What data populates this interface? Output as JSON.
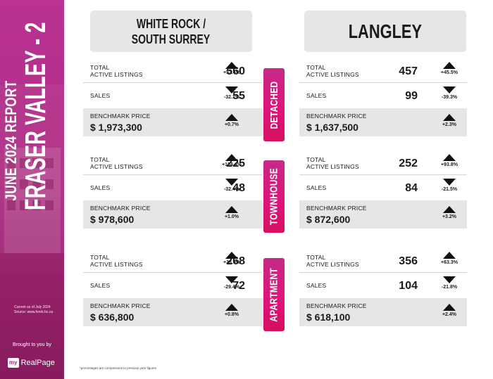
{
  "sidebar": {
    "title_line1": "JUNE 2024 REPORT",
    "title_line2": "FRASER VALLEY - 2",
    "current_line1": "Current as of July 2024",
    "current_line2": "Source: www.fvreb.bc.ca",
    "brought_by": "Brought to you by",
    "brand_my": "my",
    "brand_name": "RealPage"
  },
  "headers": {
    "left_line1": "WHITE ROCK /",
    "left_line2": "SOUTH SURREY",
    "right": "LANGLEY"
  },
  "categories": [
    "DETACHED",
    "TOWNHOUSE",
    "APARTMENT"
  ],
  "labels": {
    "listings_line1": "TOTAL",
    "listings_line2": "ACTIVE LISTINGS",
    "sales": "SALES",
    "benchmark": "BENCHMARK PRICE"
  },
  "white_rock": {
    "detached": {
      "listings": "560",
      "listings_change": "+53.4%",
      "listings_dir": "up",
      "sales": "55",
      "sales_change": "-32.1%",
      "sales_dir": "down",
      "benchmark": "$ 1,973,300",
      "benchmark_change": "+0.7%",
      "benchmark_dir": "up"
    },
    "townhouse": {
      "listings": "225",
      "listings_change": "+134.4%",
      "listings_dir": "up",
      "sales": "48",
      "sales_change": "-32.4%",
      "sales_dir": "down",
      "benchmark": "$ 978,600",
      "benchmark_change": "+1.0%",
      "benchmark_dir": "up"
    },
    "apartment": {
      "listings": "268",
      "listings_change": "+38.9%",
      "listings_dir": "up",
      "sales": "72",
      "sales_change": "-29.4%",
      "sales_dir": "down",
      "benchmark": "$  636,800",
      "benchmark_change": "+0.8%",
      "benchmark_dir": "up"
    }
  },
  "langley": {
    "detached": {
      "listings": "457",
      "listings_change": "+45.5%",
      "listings_dir": "up",
      "sales": "99",
      "sales_change": "-39.3%",
      "sales_dir": "down",
      "benchmark": "$  1,637,500",
      "benchmark_change": "+2.3%",
      "benchmark_dir": "up"
    },
    "townhouse": {
      "listings": "252",
      "listings_change": "+93.8%",
      "listings_dir": "up",
      "sales": "84",
      "sales_change": "-21.5%",
      "sales_dir": "down",
      "benchmark": "$ 872,600",
      "benchmark_change": "+3.2%",
      "benchmark_dir": "up"
    },
    "apartment": {
      "listings": "356",
      "listings_change": "+63.3%",
      "listings_dir": "up",
      "sales": "104",
      "sales_change": "-21.8%",
      "sales_dir": "down",
      "benchmark": "$ 618,100",
      "benchmark_change": "+2.4%",
      "benchmark_dir": "up"
    }
  },
  "footnote": "*percentages are comparisons to previous year figures",
  "colors": {
    "accent_magenta": "#e0127a",
    "sidebar_purple": "#a52374",
    "panel_grey": "#e6e6e6"
  },
  "icons": {
    "increase": "triangle-up-icon",
    "decrease": "triangle-down-icon"
  }
}
